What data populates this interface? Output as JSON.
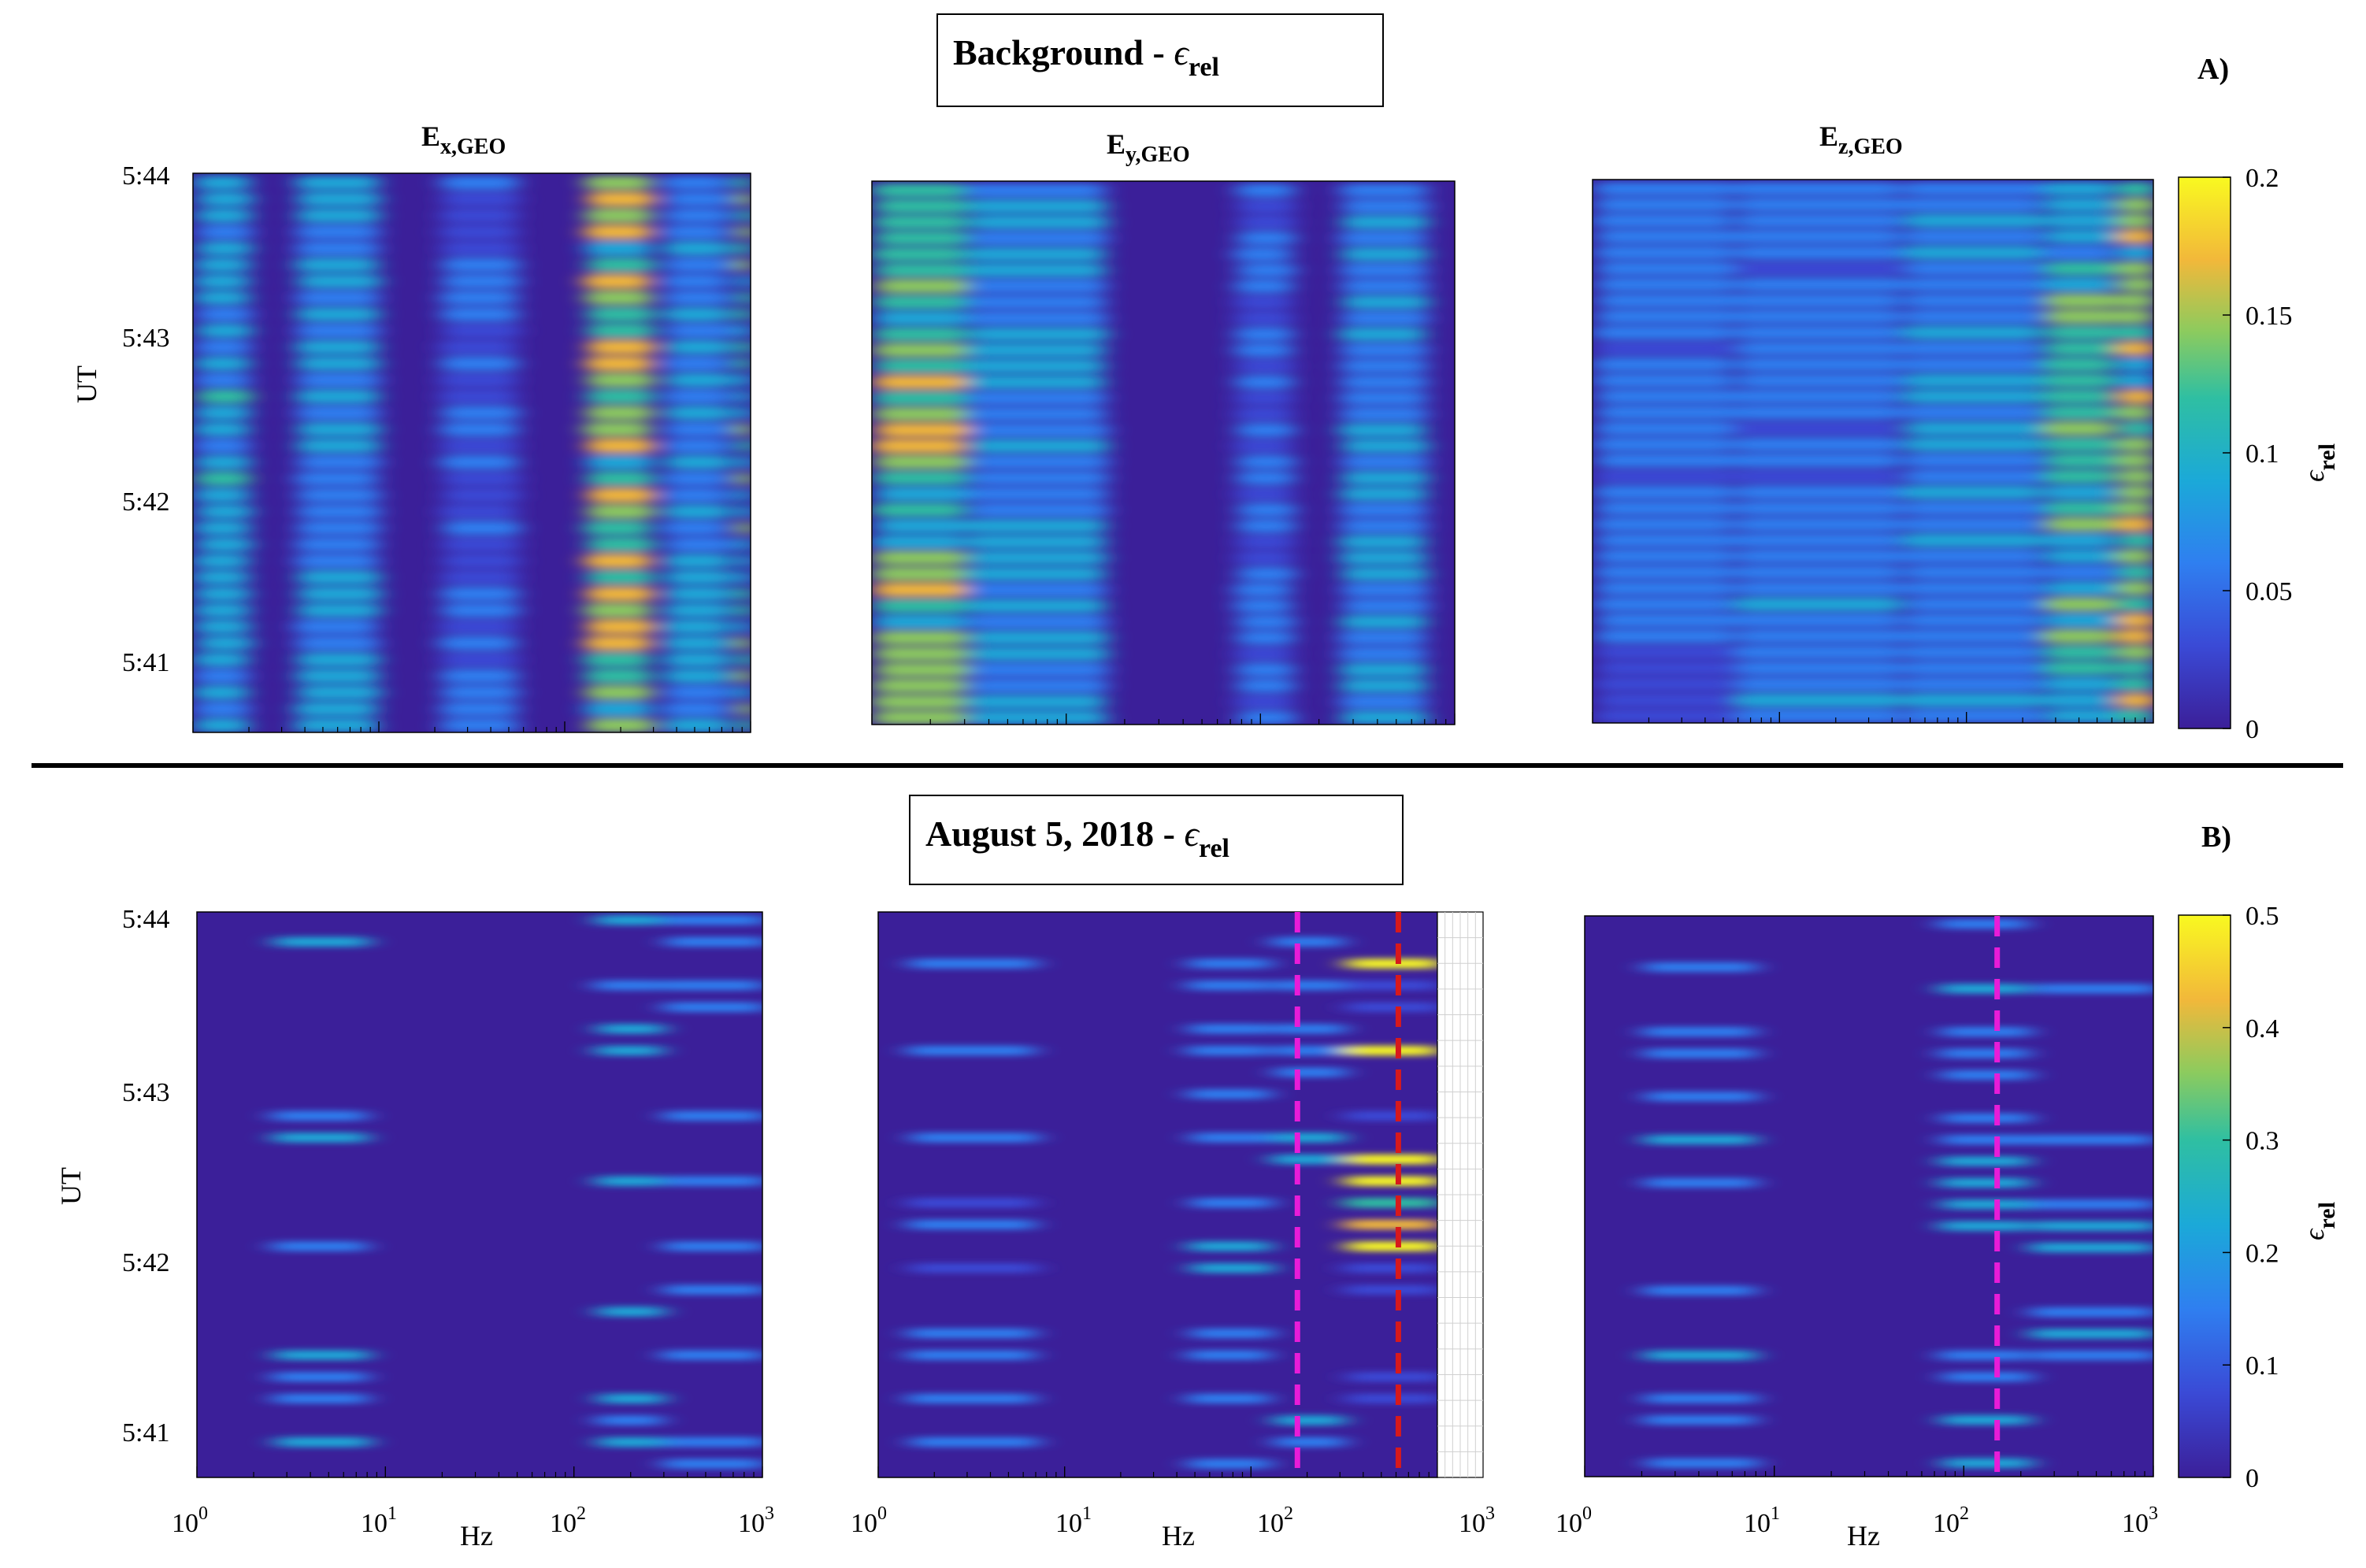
{
  "colors": {
    "divider": "#000000",
    "dashed_magenta": "#e81cd8",
    "dashed_red": "#d7191c",
    "colormap_low": "#3b1f99",
    "colormap_mid": "#21a6b7",
    "colormap_high": "#f9f920"
  },
  "section_a": {
    "title_main": "Background - ",
    "title_symbol": "ϵ",
    "title_sub": "rel",
    "panel_letter": "A)",
    "colorbar": {
      "ticks": [
        "0",
        "0.05",
        "0.1",
        "0.15",
        "0.2"
      ],
      "label_symbol": "ϵ",
      "label_sub": "rel",
      "range": [
        0,
        0.2
      ]
    }
  },
  "section_b": {
    "title_main": "August 5, 2018 - ",
    "title_symbol": "ϵ",
    "title_sub": "rel",
    "panel_letter": "B)",
    "colorbar": {
      "ticks": [
        "0",
        "0.1",
        "0.2",
        "0.3",
        "0.4",
        "0.5"
      ],
      "label_symbol": "ϵ",
      "label_sub": "rel",
      "range": [
        0,
        0.5
      ]
    }
  },
  "panel_titles": [
    {
      "main": "E",
      "sub": "x,GEO"
    },
    {
      "main": "E",
      "sub": "y,GEO"
    },
    {
      "main": "E",
      "sub": "z,GEO"
    }
  ],
  "axes": {
    "y_label": "UT",
    "x_label": "Hz",
    "y_ticks": [
      "5:44",
      "5:43",
      "5:42",
      "5:41"
    ],
    "x_tick_base": "10",
    "x_tick_exponents": [
      "0",
      "1",
      "2",
      "3"
    ]
  },
  "chart_data": [
    {
      "type": "heatmap",
      "title": "Background - ϵrel",
      "panels": [
        "Ex,GEO",
        "Ey,GEO",
        "Ez,GEO"
      ],
      "xlabel": "Hz",
      "ylabel": "UT",
      "xscale": "log",
      "xlim": [
        1,
        1000
      ],
      "ylim": [
        "5:40:40",
        "5:44:00"
      ],
      "colorbar_label": "ϵrel",
      "clim": [
        0,
        0.2
      ],
      "hot_bands_hz": {
        "Ex,GEO": [
          1.2,
          4.5,
          200,
          900
        ],
        "Ey,GEO": [
          1.3,
          6,
          600
        ],
        "Ez,GEO": [
          200,
          700
        ]
      }
    },
    {
      "type": "heatmap",
      "title": "August 5, 2018 - ϵrel",
      "panels": [
        "Ex,GEO",
        "Ey,GEO",
        "Ez,GEO"
      ],
      "xlabel": "Hz",
      "ylabel": "UT",
      "xscale": "log",
      "xlim": [
        1,
        1000
      ],
      "ylim": [
        "5:40:40",
        "5:44:05"
      ],
      "colorbar_label": "ϵrel",
      "clim": [
        0,
        0.5
      ],
      "reference_lines_hz": {
        "Ey,GEO": [
          {
            "hz": 120,
            "color": "magenta"
          },
          {
            "hz": 380,
            "color": "red"
          }
        ],
        "Ez,GEO": [
          {
            "hz": 150,
            "color": "magenta"
          }
        ]
      }
    }
  ]
}
